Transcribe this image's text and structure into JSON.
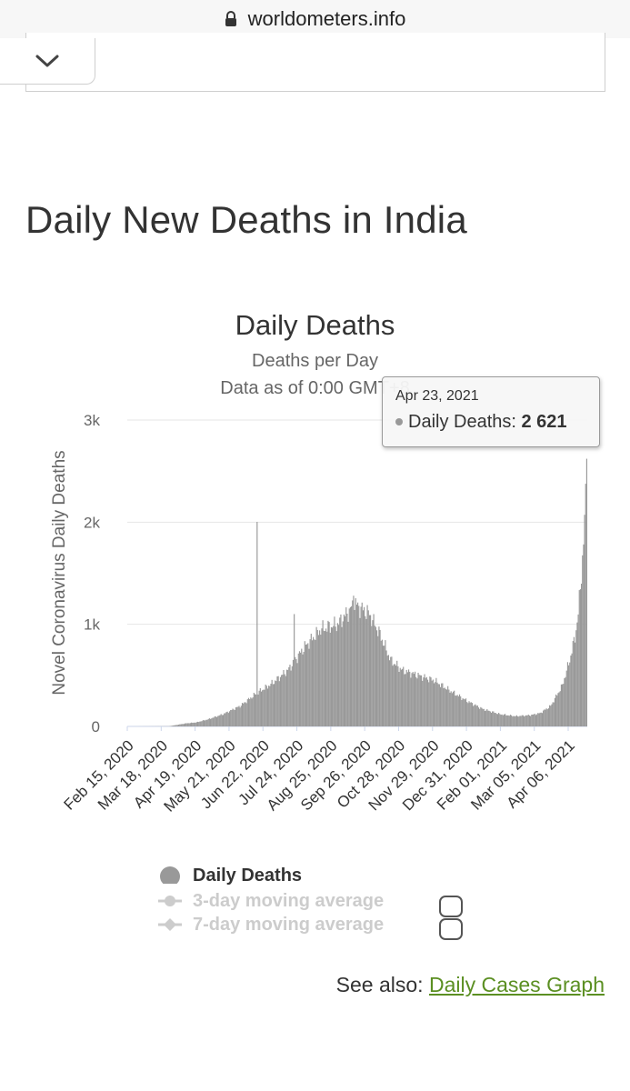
{
  "browser": {
    "url": "worldometers.info"
  },
  "page": {
    "title": "Daily New Deaths in India"
  },
  "chart_data": {
    "type": "bar",
    "title": "Daily Deaths",
    "subtitle": "Deaths per Day",
    "subtitle2": "Data as of 0:00 GMT+8",
    "ylabel": "Novel Coronavirus Daily Deaths",
    "ylim": [
      0,
      3000
    ],
    "yticks": [
      0,
      1000,
      2000,
      3000
    ],
    "ytick_labels": [
      "0",
      "1k",
      "2k",
      "3k"
    ],
    "x_start": "Feb 15, 2020",
    "x_end": "Apr 23, 2021",
    "xtick_labels": [
      "Feb 15, 2020",
      "Mar 18, 2020",
      "Apr 19, 2020",
      "May 21, 2020",
      "Jun 22, 2020",
      "Jul 24, 2020",
      "Aug 25, 2020",
      "Sep 26, 2020",
      "Oct 28, 2020",
      "Nov 29, 2020",
      "Dec 31, 2020",
      "Feb 01, 2021",
      "Mar 05, 2021",
      "Apr 06, 2021"
    ],
    "grid": true,
    "bar_color": "#999999",
    "series": [
      {
        "name": "Daily Deaths",
        "daily_values_start": "Feb 15, 2020",
        "keypoints": [
          [
            "Feb 15, 2020",
            0
          ],
          [
            "Mar 25, 2020",
            2
          ],
          [
            "Apr 10, 2020",
            30
          ],
          [
            "Apr 20, 2020",
            40
          ],
          [
            "May 01, 2020",
            70
          ],
          [
            "May 15, 2020",
            120
          ],
          [
            "May 31, 2020",
            200
          ],
          [
            "Jun 15, 2020",
            320
          ],
          [
            "Jun 30, 2020",
            420
          ],
          [
            "Jul 15, 2020",
            550
          ],
          [
            "Jul 31, 2020",
            780
          ],
          [
            "Aug 15, 2020",
            950
          ],
          [
            "Aug 31, 2020",
            1000
          ],
          [
            "Sep 10, 2020",
            1120
          ],
          [
            "Sep 16, 2020",
            1200
          ],
          [
            "Sep 30, 2020",
            1100
          ],
          [
            "Oct 10, 2020",
            900
          ],
          [
            "Oct 20, 2020",
            650
          ],
          [
            "Oct 31, 2020",
            550
          ],
          [
            "Nov 15, 2020",
            500
          ],
          [
            "Nov 30, 2020",
            450
          ],
          [
            "Dec 15, 2020",
            350
          ],
          [
            "Dec 31, 2020",
            250
          ],
          [
            "Jan 15, 2021",
            170
          ],
          [
            "Jan 31, 2021",
            120
          ],
          [
            "Feb 15, 2021",
            100
          ],
          [
            "Mar 01, 2021",
            110
          ],
          [
            "Mar 10, 2021",
            130
          ],
          [
            "Mar 20, 2021",
            200
          ],
          [
            "Mar 31, 2021",
            400
          ],
          [
            "Apr 07, 2021",
            650
          ],
          [
            "Apr 12, 2021",
            880
          ],
          [
            "Apr 15, 2021",
            1100
          ],
          [
            "Apr 18, 2021",
            1500
          ],
          [
            "Apr 20, 2021",
            1800
          ],
          [
            "Apr 21, 2021",
            2000
          ],
          [
            "Apr 22, 2021",
            2250
          ],
          [
            "Apr 23, 2021",
            2621
          ]
        ],
        "spikes": [
          [
            "Jun 16, 2020",
            2003
          ],
          [
            "Jul 21, 2020",
            1100
          ],
          [
            "Sep 15, 2020",
            1280
          ],
          [
            "Oct 04, 2020",
            1100
          ]
        ]
      }
    ],
    "tooltip": {
      "date": "Apr 23, 2021",
      "label": "Daily Deaths:",
      "value": "2 621"
    }
  },
  "legend": {
    "items": [
      {
        "label": "Daily Deaths",
        "color": "#999999"
      },
      {
        "label": "3-day moving average",
        "color": "#cccccc"
      },
      {
        "label": "7-day moving average",
        "color": "#cccccc"
      }
    ]
  },
  "see_also": {
    "prefix": "See also:",
    "link": "Daily Cases Graph",
    "link_color": "#5b8f22"
  }
}
